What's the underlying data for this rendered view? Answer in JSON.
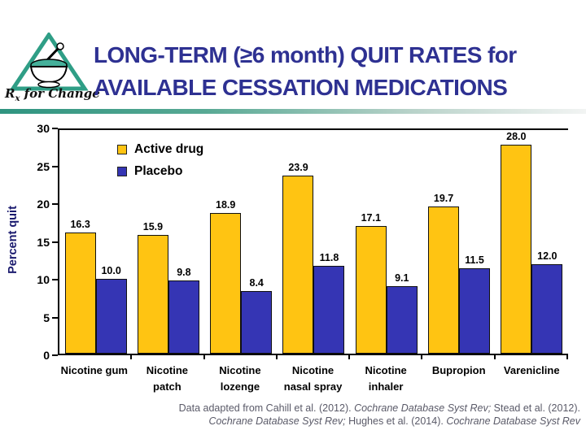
{
  "header": {
    "title_line1": "LONG-TERM (≥6 month) QUIT RATES for",
    "title_line2": "AVAILABLE CESSATION MEDICATIONS",
    "title_color": "#2e3192",
    "accent_teal": "#2f9480",
    "logo": {
      "rx": "R",
      "rx_sub": "x",
      "rest": " for Change"
    }
  },
  "chart_data": {
    "type": "bar",
    "title": "",
    "xlabel": "",
    "ylabel": "Percent quit",
    "ylim": [
      0,
      30
    ],
    "yticks": [
      0,
      5,
      10,
      15,
      20,
      25,
      30
    ],
    "grid": false,
    "legend_position": "inside-top-left",
    "categories": [
      "Nicotine gum",
      "Nicotine patch",
      "Nicotine lozenge",
      "Nicotine nasal spray",
      "Nicotine inhaler",
      "Bupropion",
      "Varenicline"
    ],
    "category_lines": [
      [
        "Nicotine gum"
      ],
      [
        "Nicotine",
        "patch"
      ],
      [
        "Nicotine",
        "lozenge"
      ],
      [
        "Nicotine",
        "nasal spray"
      ],
      [
        "Nicotine",
        "inhaler"
      ],
      [
        "Bupropion"
      ],
      [
        "Varenicline"
      ]
    ],
    "series": [
      {
        "name": "Active drug",
        "color": "#FFC412",
        "values": [
          16.3,
          15.9,
          18.9,
          23.9,
          17.1,
          19.7,
          28.0
        ]
      },
      {
        "name": "Placebo",
        "color": "#3535B4",
        "values": [
          10.0,
          9.8,
          8.4,
          11.8,
          9.1,
          11.5,
          12.0
        ]
      }
    ],
    "value_label_decimals": 1
  },
  "footer": {
    "text_color": "#5a5a68",
    "citation_lines": [
      [
        {
          "text": "Data adapted from Cahill et al. (2012). ",
          "italic": false
        },
        {
          "text": "Cochrane Database Syst Rev;",
          "italic": true
        },
        {
          "text": " Stead et al. (2012).",
          "italic": false
        }
      ],
      [
        {
          "text": "Cochrane Database Syst Rev;",
          "italic": true
        },
        {
          "text": "  Hughes et al. (2014). ",
          "italic": false
        },
        {
          "text": "Cochrane Database Syst Rev",
          "italic": true
        }
      ]
    ]
  }
}
